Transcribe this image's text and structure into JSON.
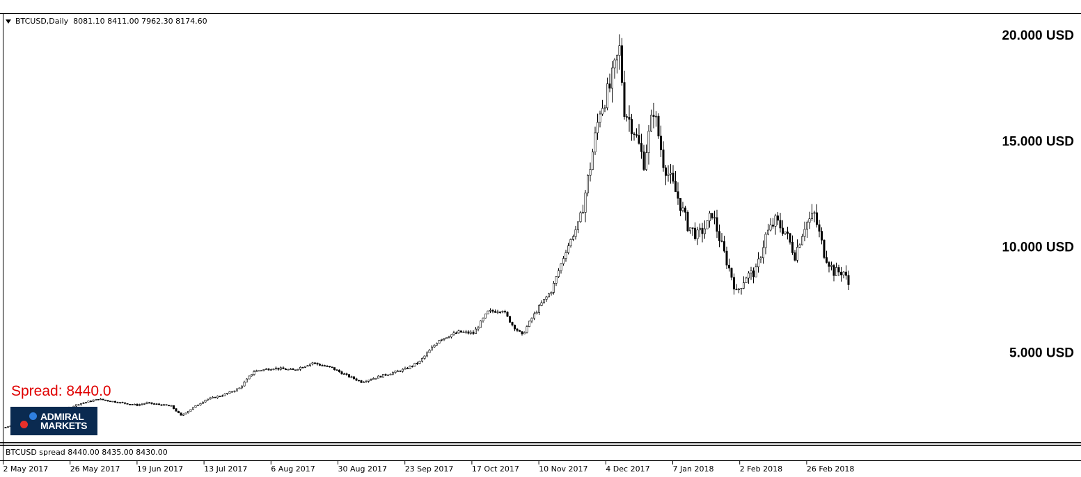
{
  "header": {
    "symbol": "BTCUSD,Daily",
    "ohlc": "8081.10 8411.00 7962.30 8174.60"
  },
  "spread_label": "Spread:  8440.0",
  "logo": {
    "line1": "ADMIRAL",
    "line2": "MARKETS"
  },
  "sub_window": {
    "text": "BTCUSD spread 8440.00 8435.00 8430.00"
  },
  "colors": {
    "candle": "#000000",
    "background": "#ffffff",
    "spread_text": "#e00000",
    "logo_bg": "#0a2a50"
  },
  "chart_data": {
    "type": "candlestick",
    "title": "",
    "y_labels": [
      {
        "value": 20000,
        "text": "20.000 USD"
      },
      {
        "value": 15000,
        "text": "15.000 USD"
      },
      {
        "value": 10000,
        "text": "10.000 USD"
      },
      {
        "value": 5000,
        "text": "5.000 USD"
      }
    ],
    "ylim": [
      1000,
      21000
    ],
    "x_labels": [
      "2 May 2017",
      "26 May 2017",
      "19 Jun 2017",
      "13 Jul 2017",
      "6 Aug 2017",
      "30 Aug 2017",
      "23 Sep 2017",
      "17 Oct 2017",
      "10 Nov 2017",
      "4 Dec 2017",
      "7 Jan 2018",
      "2 Feb 2018",
      "26 Feb 2018"
    ],
    "days": 316,
    "close_path": [
      [
        0,
        1450
      ],
      [
        12,
        1900
      ],
      [
        24,
        2300
      ],
      [
        30,
        2550
      ],
      [
        38,
        2780
      ],
      [
        48,
        2600
      ],
      [
        54,
        2500
      ],
      [
        58,
        2600
      ],
      [
        68,
        2450
      ],
      [
        72,
        2000
      ],
      [
        76,
        2300
      ],
      [
        82,
        2750
      ],
      [
        90,
        3000
      ],
      [
        96,
        3300
      ],
      [
        102,
        4100
      ],
      [
        110,
        4250
      ],
      [
        118,
        4150
      ],
      [
        126,
        4500
      ],
      [
        134,
        4250
      ],
      [
        140,
        3900
      ],
      [
        146,
        3600
      ],
      [
        152,
        3800
      ],
      [
        158,
        4000
      ],
      [
        164,
        4200
      ],
      [
        170,
        4550
      ],
      [
        178,
        5600
      ],
      [
        186,
        5950
      ],
      [
        192,
        5900
      ],
      [
        198,
        6900
      ],
      [
        204,
        7000
      ],
      [
        208,
        6300
      ],
      [
        212,
        5800
      ],
      [
        216,
        6600
      ],
      [
        220,
        7300
      ],
      [
        224,
        7900
      ],
      [
        230,
        9800
      ],
      [
        236,
        11300
      ],
      [
        240,
        13800
      ],
      [
        244,
        16500
      ],
      [
        248,
        17500
      ],
      [
        252,
        19300
      ],
      [
        254,
        16500
      ],
      [
        258,
        15500
      ],
      [
        262,
        14000
      ],
      [
        266,
        16500
      ],
      [
        270,
        14000
      ],
      [
        276,
        12300
      ],
      [
        280,
        11000
      ],
      [
        284,
        10500
      ],
      [
        288,
        11000
      ],
      [
        290,
        11600
      ],
      [
        294,
        10000
      ],
      [
        298,
        8600
      ],
      [
        300,
        7800
      ],
      [
        304,
        8600
      ],
      [
        308,
        8800
      ],
      [
        312,
        10500
      ],
      [
        316,
        11200
      ],
      [
        320,
        10700
      ],
      [
        324,
        9600
      ],
      [
        328,
        11000
      ],
      [
        332,
        11500
      ],
      [
        336,
        9700
      ],
      [
        340,
        8800
      ],
      [
        344,
        8800
      ],
      [
        346,
        8200
      ]
    ]
  }
}
